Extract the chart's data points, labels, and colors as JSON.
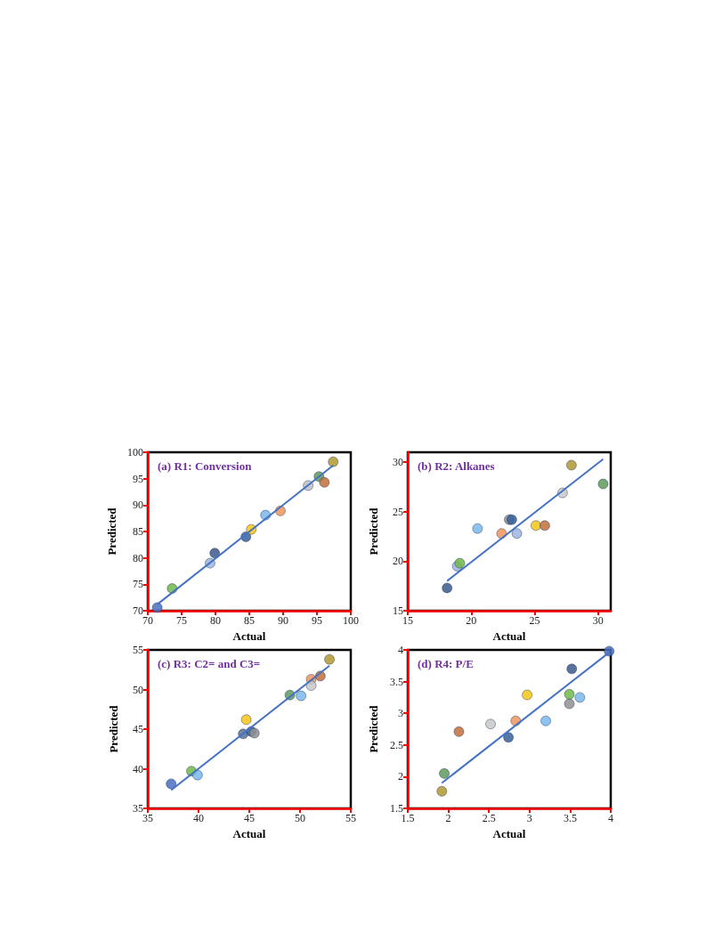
{
  "chart_data": [
    {
      "type": "scatter",
      "title": "(a) R1: Conversion",
      "xlabel": "Actual",
      "ylabel": "Predicted",
      "xlim": [
        70,
        100
      ],
      "ylim": [
        70,
        100
      ],
      "xticks": [
        70,
        75,
        80,
        85,
        90,
        95,
        100
      ],
      "yticks": [
        70,
        75,
        80,
        85,
        90,
        95,
        100
      ],
      "grid": false,
      "x": [
        71.4,
        73.6,
        79.2,
        79.9,
        84.5,
        85.3,
        87.4,
        89.6,
        93.7,
        95.3,
        96.1,
        97.4
      ],
      "series": [
        {
          "marker": "circle",
          "values": [
            70.6,
            74.2,
            79.0,
            80.9,
            84.0,
            85.4,
            88.1,
            88.9,
            93.7,
            95.4,
            94.3,
            98.2
          ],
          "colors": [
            "#4a6fc0",
            "#70b84a",
            "#9db4e0",
            "#3c5a8c",
            "#35609a",
            "#f5c518",
            "#7ab8ec",
            "#f0945a",
            "#c0c0c0",
            "#5e9a5a",
            "#c0703a",
            "#b09a30"
          ]
        },
        {
          "type": "line",
          "color": "#4472c4",
          "x": [
            71.4,
            97.4
          ],
          "values": [
            71.2,
            97.5
          ]
        }
      ]
    },
    {
      "type": "scatter",
      "title": "(b) R2: Alkanes",
      "xlabel": "Actual",
      "ylabel": "Predicted",
      "xlim": [
        15,
        31
      ],
      "ylim": [
        15,
        31
      ],
      "xticks": [
        15,
        20,
        25,
        30
      ],
      "yticks": [
        15,
        20,
        25,
        30
      ],
      "grid": false,
      "x": [
        18.1,
        18.9,
        19.1,
        20.5,
        22.4,
        23.0,
        23.2,
        23.6,
        25.1,
        25.8,
        27.2,
        27.9,
        30.4
      ],
      "series": [
        {
          "marker": "circle",
          "values": [
            17.3,
            19.5,
            19.8,
            23.3,
            22.8,
            24.2,
            24.2,
            22.8,
            23.6,
            23.6,
            26.9,
            29.7,
            27.8
          ],
          "colors": [
            "#3c5a8c",
            "#9db4e0",
            "#70b84a",
            "#7ab8ec",
            "#f0945a",
            "#909090",
            "#35609a",
            "#9db4e0",
            "#f5c518",
            "#c0703a",
            "#c8c8c8",
            "#b09a30",
            "#5e9a5a"
          ]
        },
        {
          "type": "line",
          "color": "#4472c4",
          "x": [
            18.1,
            30.4
          ],
          "values": [
            18.0,
            30.3
          ]
        }
      ]
    },
    {
      "type": "scatter",
      "title": "(c) R3: C2= and C3=",
      "xlabel": "Actual",
      "ylabel": "Predicted",
      "xlim": [
        35,
        55
      ],
      "ylim": [
        35,
        55
      ],
      "xticks": [
        35,
        40,
        45,
        50,
        55
      ],
      "yticks": [
        35,
        40,
        45,
        50,
        55
      ],
      "grid": false,
      "x": [
        37.3,
        39.3,
        39.9,
        44.4,
        44.7,
        45.2,
        45.5,
        49.0,
        50.1,
        51.1,
        51.1,
        52.0,
        52.9
      ],
      "series": [
        {
          "marker": "circle",
          "values": [
            38.1,
            39.7,
            39.2,
            44.4,
            46.2,
            44.7,
            44.5,
            49.3,
            49.2,
            51.3,
            50.5,
            51.7,
            53.8
          ],
          "colors": [
            "#4a6fc0",
            "#70b84a",
            "#7ab8ec",
            "#5a7090",
            "#f5c518",
            "#35609a",
            "#909090",
            "#5e9a5a",
            "#7ab8ec",
            "#f0945a",
            "#c8c8c8",
            "#c0703a",
            "#b09a30"
          ]
        },
        {
          "type": "line",
          "color": "#4472c4",
          "x": [
            37.3,
            52.9
          ],
          "values": [
            37.3,
            53.0
          ]
        }
      ]
    },
    {
      "type": "scatter",
      "title": "(d) R4: P/E",
      "xlabel": "Actual",
      "ylabel": "Predicted",
      "xlim": [
        1.5,
        4
      ],
      "ylim": [
        1.5,
        4
      ],
      "xticks": [
        1.5,
        2,
        2.5,
        3,
        3.5,
        4
      ],
      "yticks": [
        1.5,
        2,
        2.5,
        3,
        3.5,
        4
      ],
      "grid": false,
      "x": [
        1.92,
        1.95,
        2.13,
        2.52,
        2.74,
        2.83,
        2.97,
        3.2,
        3.49,
        3.49,
        3.52,
        3.62,
        3.98
      ],
      "series": [
        {
          "marker": "circle",
          "values": [
            1.77,
            2.05,
            2.71,
            2.83,
            2.62,
            2.88,
            3.29,
            2.88,
            3.15,
            3.3,
            3.7,
            3.25,
            3.98
          ],
          "colors": [
            "#b09a30",
            "#5e9a5a",
            "#c0703a",
            "#c8c8c8",
            "#35609a",
            "#f0945a",
            "#f5c518",
            "#7ab8ec",
            "#909090",
            "#70b84a",
            "#3c5a8c",
            "#7ab8ec",
            "#4a6fc0"
          ]
        },
        {
          "type": "line",
          "color": "#4472c4",
          "x": [
            1.92,
            3.98
          ],
          "values": [
            1.9,
            3.96
          ]
        }
      ]
    }
  ]
}
